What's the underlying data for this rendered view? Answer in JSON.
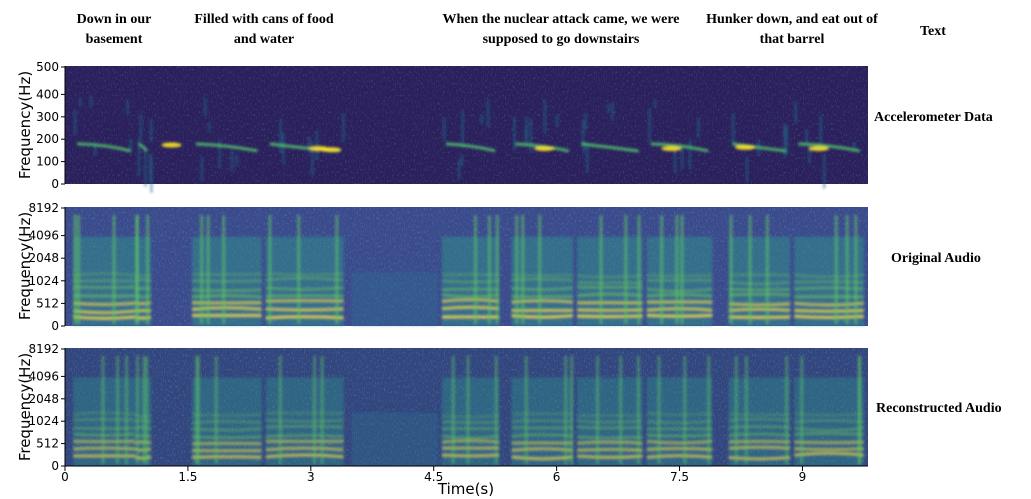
{
  "header": {
    "phrases": [
      "Down in our basement",
      "Filled with cans of food and water",
      "When the nuclear attack came, we were supposed to go downstairs",
      "Hunker down, and eat out of that barrel"
    ],
    "text_label": "Text"
  },
  "chart_data": [
    {
      "type": "heatmap",
      "row_label": "Accelerometer Data",
      "ylabel": "Frequency(Hz)",
      "yticks": [
        "0",
        "100",
        "200",
        "300",
        "400",
        "500"
      ],
      "ylim": [
        0,
        500
      ],
      "xlim": [
        0,
        9.8
      ],
      "colormap": "viridis"
    },
    {
      "type": "heatmap",
      "row_label": "Original Audio",
      "ylabel": "Frequency(Hz)",
      "yticks": [
        "0",
        "512",
        "1024",
        "2048",
        "4096",
        "8192"
      ],
      "colormap": "viridis"
    },
    {
      "type": "heatmap",
      "row_label": "Reconstructed Audio",
      "ylabel": "Frequency(Hz)",
      "yticks": [
        "0",
        "512",
        "1024",
        "2048",
        "4096",
        "8192"
      ],
      "xlabel": "Time(s)",
      "xticks": [
        "0",
        "1.5",
        "3",
        "4.5",
        "6",
        "7.5",
        "9"
      ],
      "xlim": [
        0,
        9.8
      ],
      "colormap": "viridis"
    }
  ],
  "colors": {
    "background_dark": "#2b1f5c",
    "mid": "#21918c",
    "bright": "#fde725"
  }
}
